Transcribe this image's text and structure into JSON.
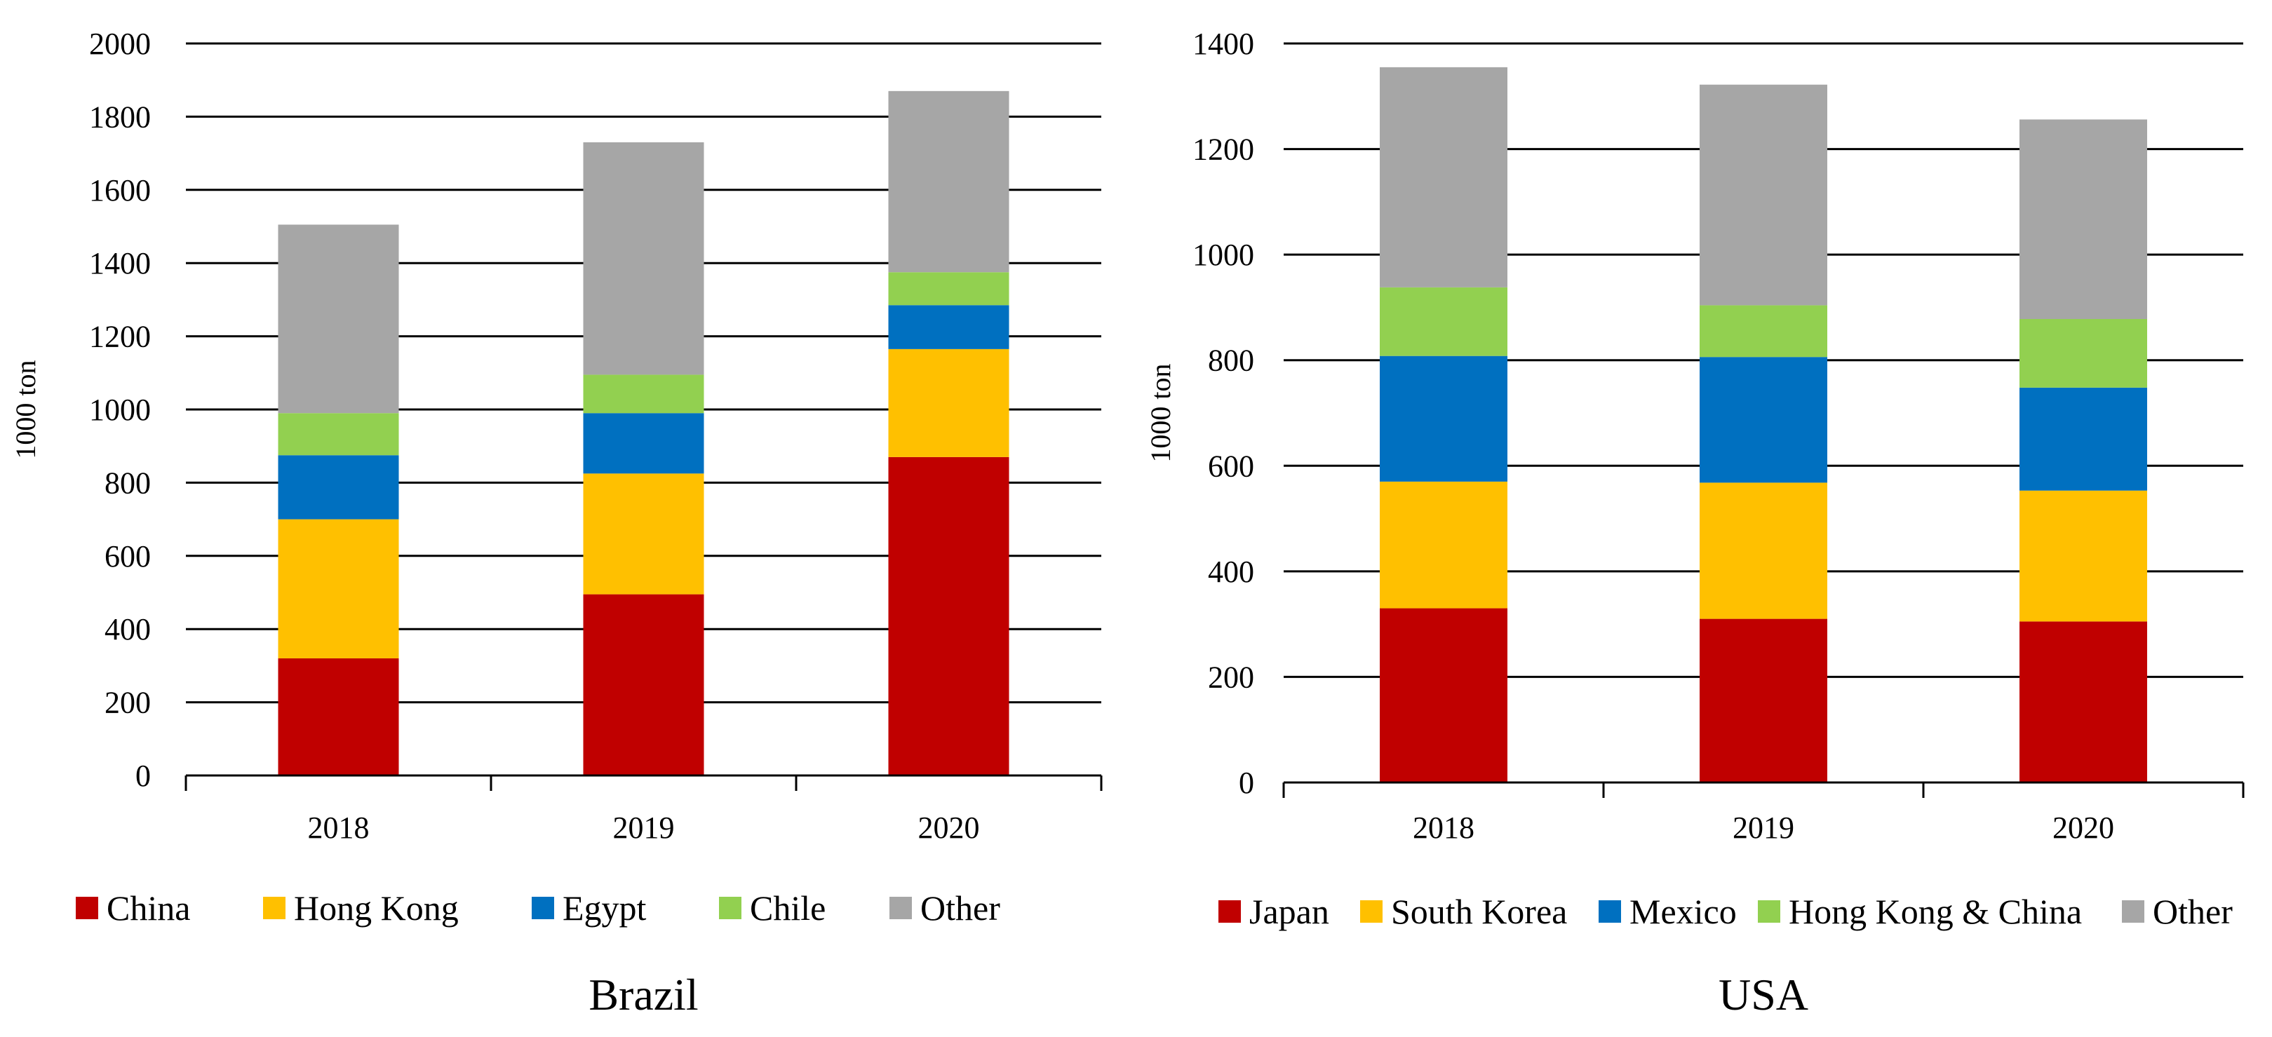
{
  "chart_data": [
    {
      "type": "bar",
      "stacked": true,
      "title": "Brazil",
      "xlabel": "",
      "ylabel": "1000 ton",
      "ylim": [
        0,
        2000
      ],
      "yticks": [
        "0",
        "200",
        "400",
        "600",
        "800",
        "1000",
        "1200",
        "1400",
        "1600",
        "1800",
        "2000"
      ],
      "categories": [
        "2018",
        "2019",
        "2020"
      ],
      "grid": true,
      "legend_position": "bottom",
      "series": [
        {
          "name": "China",
          "color": "#C00000",
          "values": [
            320,
            495,
            870
          ]
        },
        {
          "name": "Hong Kong",
          "color": "#FFC000",
          "values": [
            380,
            330,
            295
          ]
        },
        {
          "name": "Egypt",
          "color": "#0070C0",
          "values": [
            175,
            165,
            120
          ]
        },
        {
          "name": "Chile",
          "color": "#92D050",
          "values": [
            115,
            105,
            90
          ]
        },
        {
          "name": "Other",
          "color": "#A6A6A6",
          "values": [
            515,
            635,
            495
          ]
        }
      ]
    },
    {
      "type": "bar",
      "stacked": true,
      "title": "USA",
      "xlabel": "",
      "ylabel": "1000 ton",
      "ylim": [
        0,
        1400
      ],
      "yticks": [
        "0",
        "200",
        "400",
        "600",
        "800",
        "1000",
        "1200",
        "1400"
      ],
      "categories": [
        "2018",
        "2019",
        "2020"
      ],
      "grid": true,
      "legend_position": "bottom",
      "series": [
        {
          "name": "Japan",
          "color": "#C00000",
          "values": [
            330,
            310,
            305
          ]
        },
        {
          "name": "South Korea",
          "color": "#FFC000",
          "values": [
            240,
            258,
            248
          ]
        },
        {
          "name": "Mexico",
          "color": "#0070C0",
          "values": [
            238,
            238,
            195
          ]
        },
        {
          "name": "Hong Kong & China",
          "color": "#92D050",
          "values": [
            130,
            98,
            130
          ]
        },
        {
          "name": "Other",
          "color": "#A6A6A6",
          "values": [
            417,
            418,
            378
          ]
        }
      ]
    }
  ]
}
